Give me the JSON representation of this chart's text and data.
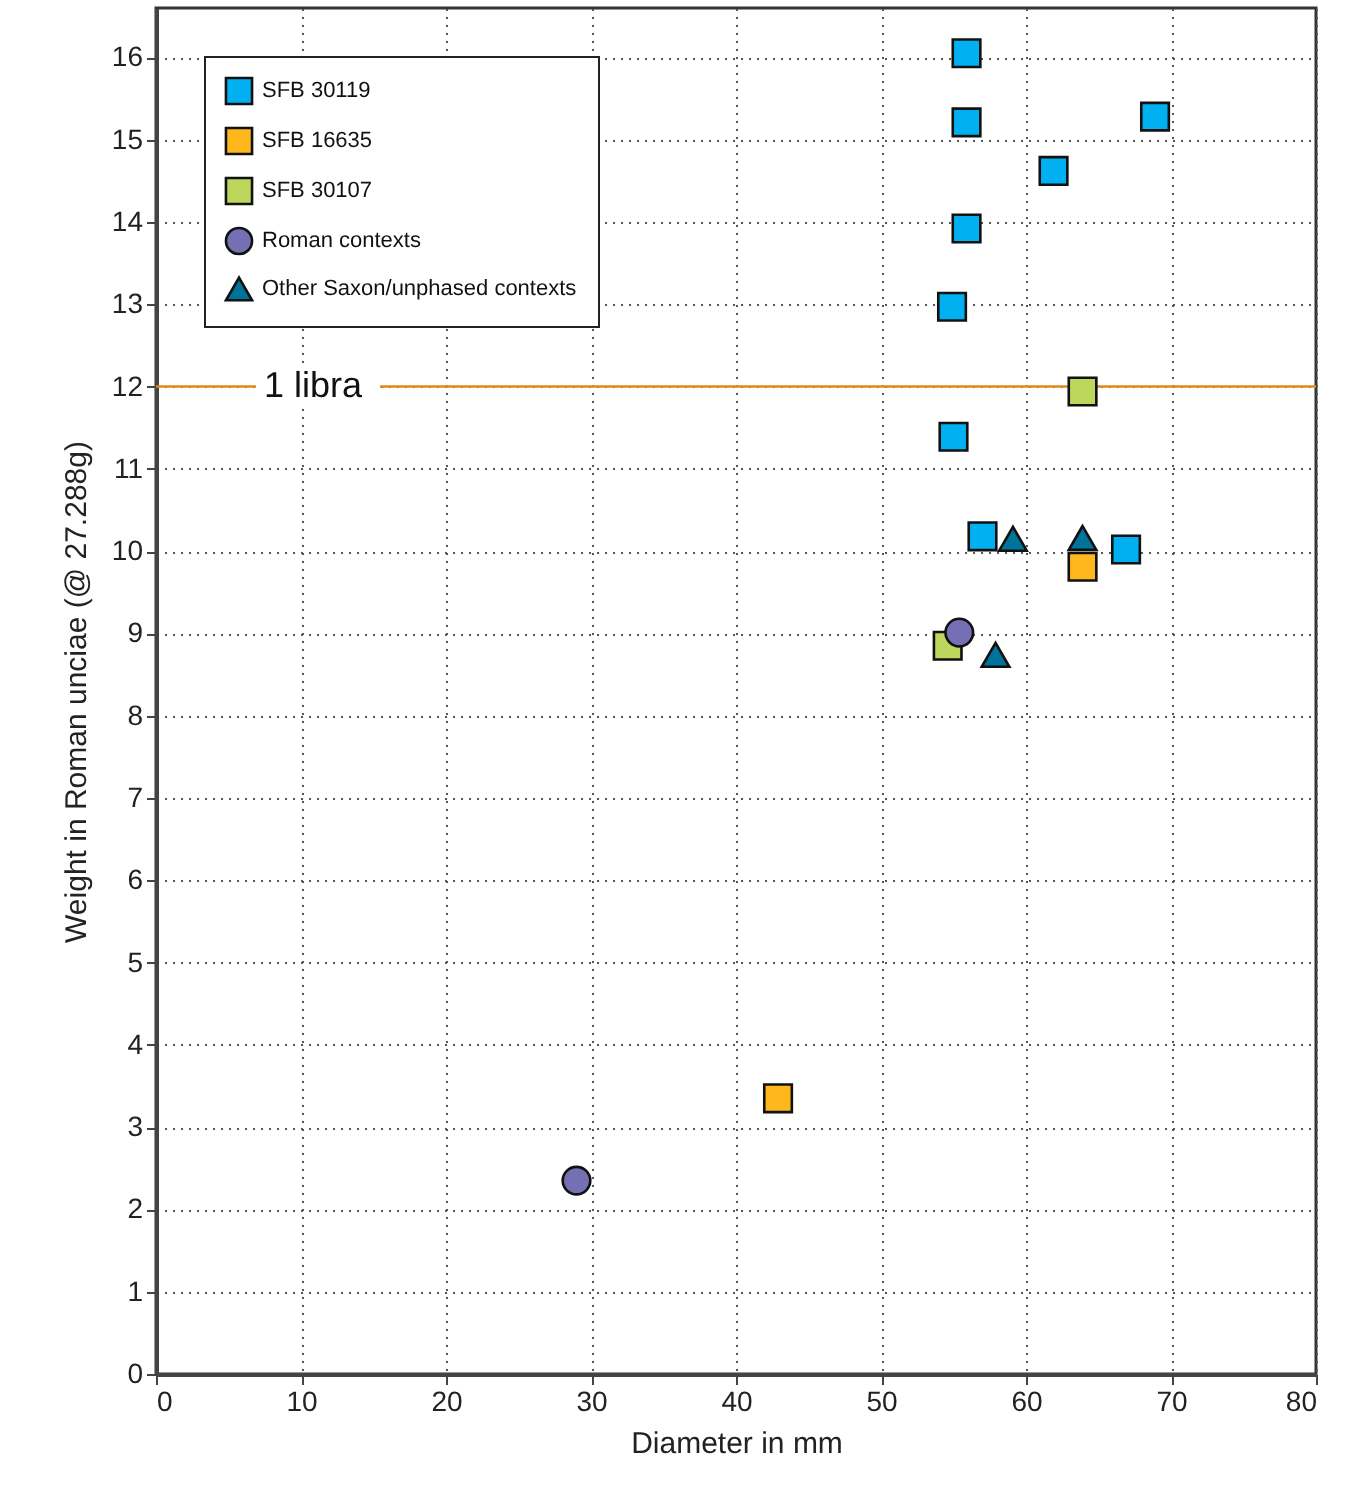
{
  "chart_data": {
    "type": "scatter",
    "xlabel": "Diameter in mm",
    "ylabel": "Weight in Roman unciae (@ 27.288g)",
    "xlim": [
      0,
      80
    ],
    "xticks": [
      0,
      10,
      20,
      30,
      40,
      50,
      60,
      70,
      80
    ],
    "ylim": [
      0,
      16.6
    ],
    "yticks": [
      0,
      1,
      2,
      3,
      4,
      5,
      6,
      7,
      8,
      9,
      10,
      11,
      12,
      13,
      14,
      15,
      16
    ],
    "grid": true,
    "legend": "top left",
    "series": [
      {
        "name": "SFB 30119",
        "color": "#00b0f0",
        "marker": "square",
        "x": [
          55.9,
          55.9,
          68.9,
          61.9,
          55.9,
          54.9,
          55.0,
          57.0,
          66.9
        ],
        "values": [
          16.05,
          15.21,
          15.28,
          14.62,
          13.92,
          12.97,
          11.39,
          10.18,
          10.02
        ]
      },
      {
        "name": "SFB 16635",
        "color": "#ffb81c",
        "marker": "square",
        "x": [
          63.9,
          42.9
        ],
        "values": [
          9.81,
          3.35
        ]
      },
      {
        "name": "SFB 30107",
        "color": "#bcd75b",
        "marker": "square",
        "x": [
          63.9,
          54.6
        ],
        "values": [
          11.94,
          8.85
        ]
      },
      {
        "name": "Roman contexts",
        "color": "#7570b3",
        "marker": "circle",
        "x": [
          55.4,
          29.0
        ],
        "values": [
          9.01,
          2.35
        ]
      },
      {
        "name": "Other Saxon/unphased contexts",
        "color": "#00739a",
        "marker": "triangle",
        "x": [
          59.1,
          63.9,
          57.9
        ],
        "values": [
          10.15,
          10.16,
          8.74
        ]
      }
    ],
    "ref_lines": [
      {
        "axis": "y",
        "value": 12,
        "label": "1 libra",
        "color": "#e08a1e"
      }
    ]
  }
}
